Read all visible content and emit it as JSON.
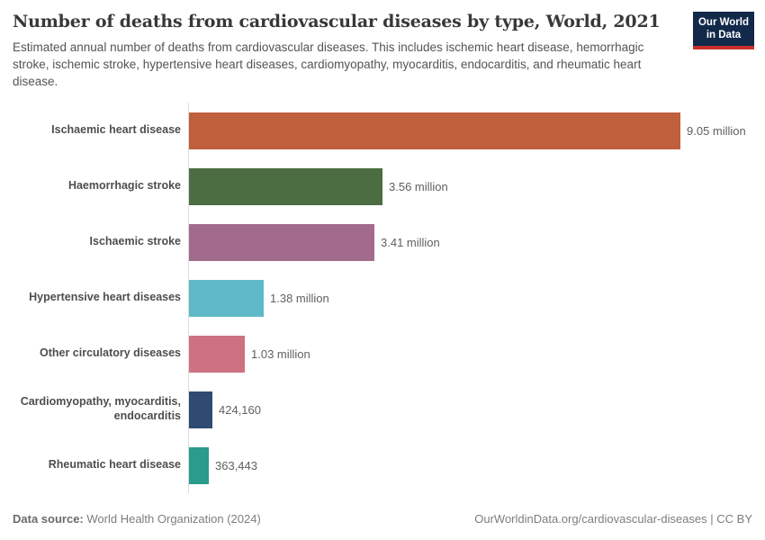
{
  "header": {
    "title": "Number of deaths from cardiovascular diseases by type, World, 2021",
    "subtitle": "Estimated annual number of deaths from cardiovascular diseases. This includes ischemic heart disease, hemorrhagic stroke, ischemic stroke, hypertensive heart diseases, cardiomyopathy, myocarditis, endocarditis, and rheumatic heart disease.",
    "logo": {
      "line1": "Our World",
      "line2": "in Data",
      "bg_color": "#12294a",
      "accent_color": "#c9302c"
    }
  },
  "chart_data": {
    "type": "bar",
    "orientation": "horizontal",
    "title": "Number of deaths from cardiovascular diseases by type, World, 2021",
    "xlabel": "",
    "ylabel": "",
    "grid": false,
    "legend": false,
    "xlim": [
      0,
      9500000
    ],
    "categories": [
      "Ischaemic heart disease",
      "Haemorrhagic stroke",
      "Ischaemic stroke",
      "Hypertensive heart diseases",
      "Other circulatory diseases",
      "Cardiomyopathy, myocarditis, endocarditis",
      "Rheumatic heart disease"
    ],
    "values": [
      9050000,
      3560000,
      3410000,
      1380000,
      1030000,
      424160,
      363443
    ],
    "value_labels": [
      "9.05 million",
      "3.56 million",
      "3.41 million",
      "1.38 million",
      "1.03 million",
      "424,160",
      "363,443"
    ],
    "bar_colors": [
      "#c05f3b",
      "#4b6d41",
      "#a26b8b",
      "#5fb9c8",
      "#ce7282",
      "#2f4b72",
      "#2a9c8d"
    ],
    "axis_line_color": "#dcdcdc"
  },
  "footer": {
    "datasource_label": "Data source:",
    "datasource_value": "World Health Organization (2024)",
    "link": "OurWorldinData.org/cardiovascular-diseases | CC BY"
  }
}
